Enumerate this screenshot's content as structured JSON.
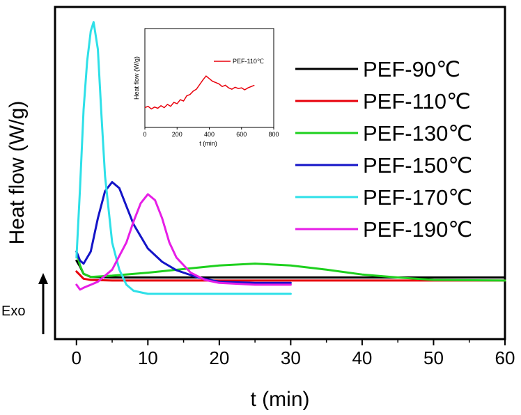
{
  "chart_data": {
    "type": "line",
    "xlabel": "t (min)",
    "ylabel": "Heat flow (W/g)",
    "annotation": "Exo",
    "xlim": [
      -3,
      60
    ],
    "xticks": [
      0,
      10,
      20,
      30,
      40,
      50,
      60
    ],
    "y_tick_labels_shown": false,
    "grid": false,
    "legend_position": "right",
    "series": [
      {
        "name": "PEF-90℃",
        "color": "#000000",
        "points": [
          [
            0,
            0.3
          ],
          [
            0.5,
            0.2
          ],
          [
            1,
            0.08
          ],
          [
            2,
            0.03
          ],
          [
            5,
            0.02
          ],
          [
            10,
            0.02
          ],
          [
            20,
            0.02
          ],
          [
            30,
            0.02
          ],
          [
            40,
            0.02
          ],
          [
            50,
            0.02
          ],
          [
            60,
            0.02
          ]
        ]
      },
      {
        "name": "PEF-110℃",
        "color": "#e8000b",
        "points": [
          [
            0,
            0.12
          ],
          [
            0.5,
            0.06
          ],
          [
            1,
            0.0
          ],
          [
            2,
            -0.02
          ],
          [
            5,
            -0.03
          ],
          [
            10,
            -0.03
          ],
          [
            20,
            -0.03
          ],
          [
            30,
            -0.03
          ],
          [
            40,
            -0.03
          ],
          [
            47,
            -0.03
          ],
          [
            60,
            -0.03
          ]
        ]
      },
      {
        "name": "PEF-130℃",
        "color": "#1ed01e",
        "points": [
          [
            0,
            0.45
          ],
          [
            0.5,
            0.22
          ],
          [
            1,
            0.08
          ],
          [
            2,
            0.03
          ],
          [
            5,
            0.05
          ],
          [
            10,
            0.1
          ],
          [
            15,
            0.16
          ],
          [
            20,
            0.22
          ],
          [
            25,
            0.25
          ],
          [
            30,
            0.22
          ],
          [
            35,
            0.15
          ],
          [
            40,
            0.07
          ],
          [
            45,
            0.02
          ],
          [
            50,
            -0.02
          ],
          [
            60,
            -0.03
          ]
        ]
      },
      {
        "name": "PEF-150℃",
        "color": "#1414c8",
        "points": [
          [
            0,
            0.45
          ],
          [
            0.5,
            0.3
          ],
          [
            1,
            0.25
          ],
          [
            2,
            0.45
          ],
          [
            3,
            1.0
          ],
          [
            4,
            1.45
          ],
          [
            5,
            1.6
          ],
          [
            6,
            1.5
          ],
          [
            7,
            1.2
          ],
          [
            8,
            0.9
          ],
          [
            10,
            0.5
          ],
          [
            12,
            0.28
          ],
          [
            14,
            0.14
          ],
          [
            17,
            0.02
          ],
          [
            20,
            -0.05
          ],
          [
            25,
            -0.07
          ],
          [
            30,
            -0.07
          ]
        ]
      },
      {
        "name": "PEF-170℃",
        "color": "#2ee0e8",
        "points": [
          [
            0,
            0.35
          ],
          [
            0.5,
            1.5
          ],
          [
            1,
            2.8
          ],
          [
            1.5,
            3.6
          ],
          [
            2,
            4.1
          ],
          [
            2.4,
            4.25
          ],
          [
            3,
            3.8
          ],
          [
            3.5,
            2.7
          ],
          [
            4,
            1.7
          ],
          [
            5,
            0.6
          ],
          [
            6,
            0.15
          ],
          [
            7,
            -0.1
          ],
          [
            8,
            -0.2
          ],
          [
            10,
            -0.25
          ],
          [
            20,
            -0.25
          ],
          [
            30,
            -0.25
          ]
        ]
      },
      {
        "name": "PEF-190℃",
        "color": "#e61ee6",
        "points": [
          [
            0,
            -0.1
          ],
          [
            0.5,
            -0.18
          ],
          [
            1,
            -0.15
          ],
          [
            3,
            -0.05
          ],
          [
            5,
            0.15
          ],
          [
            7,
            0.6
          ],
          [
            8,
            0.95
          ],
          [
            9,
            1.25
          ],
          [
            10,
            1.4
          ],
          [
            11,
            1.3
          ],
          [
            12,
            1.0
          ],
          [
            13,
            0.6
          ],
          [
            14,
            0.35
          ],
          [
            16,
            0.1
          ],
          [
            18,
            -0.02
          ],
          [
            20,
            -0.07
          ],
          [
            25,
            -0.1
          ],
          [
            30,
            -0.1
          ]
        ]
      }
    ],
    "inset": {
      "type": "line",
      "xlabel": "t (min)",
      "ylabel": "Heat flow (W/g)",
      "xlim": [
        0,
        800
      ],
      "xticks": [
        0,
        200,
        400,
        600,
        800
      ],
      "legend": "PEF-110℃",
      "color": "#e8000b",
      "points": [
        [
          0,
          0.3
        ],
        [
          20,
          0.32
        ],
        [
          40,
          0.28
        ],
        [
          60,
          0.31
        ],
        [
          80,
          0.29
        ],
        [
          100,
          0.33
        ],
        [
          120,
          0.3
        ],
        [
          140,
          0.35
        ],
        [
          160,
          0.32
        ],
        [
          180,
          0.38
        ],
        [
          200,
          0.36
        ],
        [
          220,
          0.42
        ],
        [
          240,
          0.4
        ],
        [
          260,
          0.48
        ],
        [
          280,
          0.5
        ],
        [
          300,
          0.55
        ],
        [
          320,
          0.58
        ],
        [
          340,
          0.65
        ],
        [
          360,
          0.72
        ],
        [
          380,
          0.78
        ],
        [
          400,
          0.74
        ],
        [
          420,
          0.7
        ],
        [
          440,
          0.68
        ],
        [
          460,
          0.66
        ],
        [
          480,
          0.62
        ],
        [
          500,
          0.64
        ],
        [
          520,
          0.6
        ],
        [
          540,
          0.58
        ],
        [
          560,
          0.61
        ],
        [
          580,
          0.59
        ],
        [
          600,
          0.6
        ],
        [
          620,
          0.57
        ],
        [
          640,
          0.6
        ],
        [
          660,
          0.62
        ],
        [
          680,
          0.64
        ]
      ]
    }
  }
}
